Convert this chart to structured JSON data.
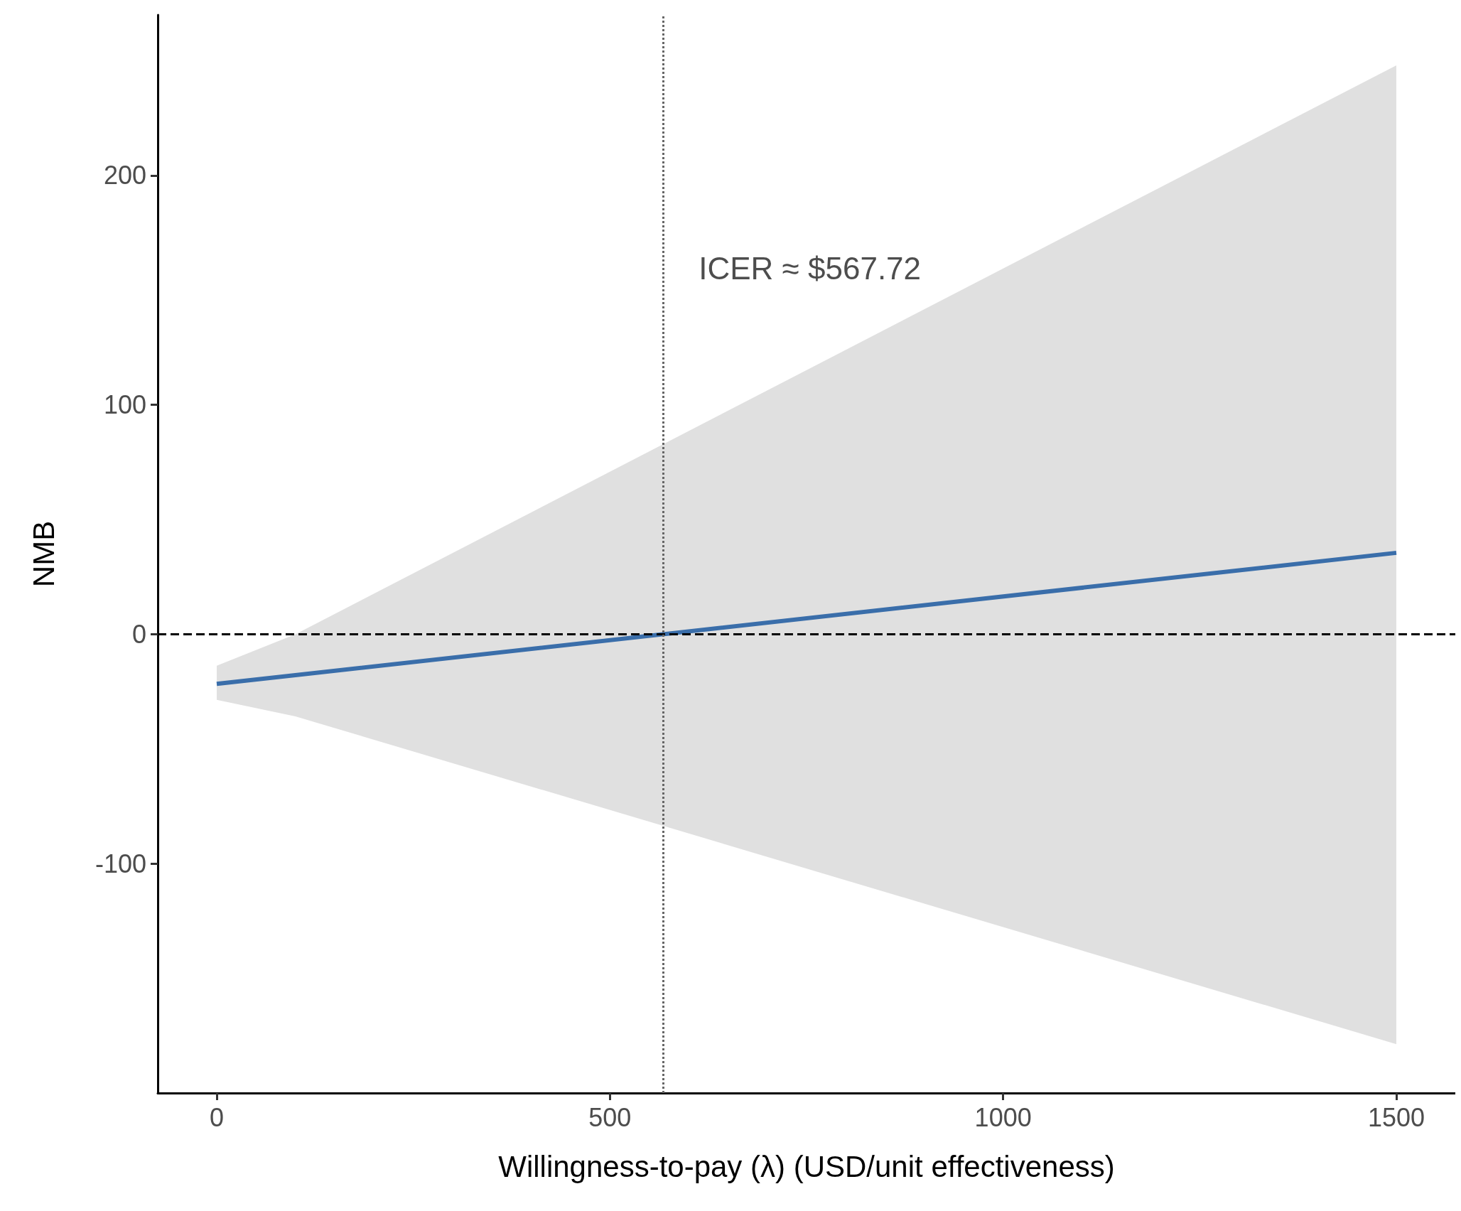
{
  "chart_data": {
    "type": "line",
    "xlabel": "Willingness-to-pay (λ) (USD/unit effectiveness)",
    "ylabel": "NMB",
    "xlim": [
      -75,
      1575
    ],
    "xticks": [
      0,
      500,
      1000,
      1500
    ],
    "ylim": [
      -200,
      270
    ],
    "yticks": [
      -100,
      0,
      100,
      200
    ],
    "grid": false,
    "marker": "none",
    "series": [
      {
        "color": "#3a6eaa",
        "x": [
          0,
          100,
          1500
        ],
        "values": [
          -21.6,
          -17.8,
          35.5
        ],
        "lower": [
          -28.6,
          -35.8,
          -178.7
        ],
        "upper": [
          -13.7,
          0,
          248
        ]
      }
    ],
    "ref_lines": [
      {
        "axis": "y",
        "value": 0,
        "color": "#000000",
        "line_style": "dashed"
      },
      {
        "axis": "x",
        "value": 567.72,
        "color": "#666666",
        "line_style": "dotted",
        "label": "ICER ≈ $567.72"
      }
    ]
  }
}
